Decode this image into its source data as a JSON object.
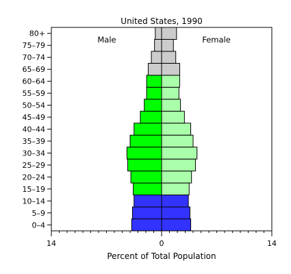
{
  "chart_data": {
    "type": "bar",
    "orientation": "horizontal",
    "layout": "population-pyramid",
    "title": "United States, 1990",
    "xlabel": "Percent of Total Population",
    "ylabel": "",
    "xlim": [
      -14,
      14
    ],
    "x_ticks": [
      {
        "value": -14,
        "label": "14"
      },
      {
        "value": 0,
        "label": "0"
      },
      {
        "value": 14,
        "label": "14"
      }
    ],
    "x_minor_step": 1,
    "categories": [
      "0–4",
      "5–9",
      "10–14",
      "15–19",
      "20–24",
      "25–29",
      "30–34",
      "35–39",
      "40–44",
      "45–49",
      "50–54",
      "55–59",
      "60–64",
      "65–69",
      "70–74",
      "75–79",
      "80+"
    ],
    "series": [
      {
        "name": "Male",
        "side": "left",
        "values": [
          3.8,
          3.7,
          3.5,
          3.6,
          3.9,
          4.3,
          4.4,
          4.0,
          3.5,
          2.7,
          2.2,
          1.9,
          1.9,
          1.7,
          1.3,
          0.9,
          0.8
        ]
      },
      {
        "name": "Female",
        "side": "right",
        "values": [
          3.7,
          3.6,
          3.4,
          3.5,
          3.8,
          4.3,
          4.5,
          4.0,
          3.7,
          2.9,
          2.4,
          2.2,
          2.3,
          2.3,
          1.8,
          1.5,
          1.9
        ]
      }
    ],
    "age_group_colors": {
      "children": {
        "categories": [
          "0–4",
          "5–9",
          "10–14"
        ],
        "male": "#3333ff",
        "female": "#3333ff"
      },
      "working": {
        "categories": [
          "15–19",
          "20–24",
          "25–29",
          "30–34",
          "35–39",
          "40–44",
          "45–49",
          "50–54",
          "55–59",
          "60–64"
        ],
        "male": "#00ff00",
        "female": "#aaffaa"
      },
      "elderly": {
        "categories": [
          "65–69",
          "70–74",
          "75–79",
          "80+"
        ],
        "male": "#cccccc",
        "female": "#cccccc"
      }
    },
    "bar_outline_color": "#000000",
    "grid": false
  }
}
